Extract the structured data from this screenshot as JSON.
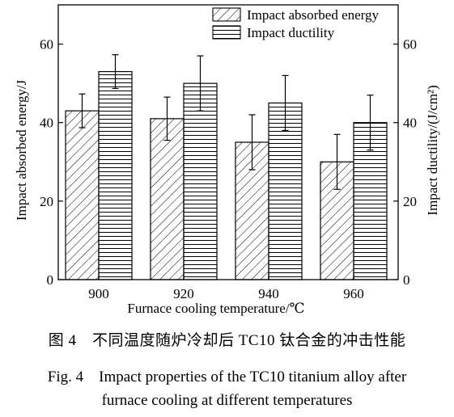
{
  "chart_data": {
    "type": "bar",
    "categories": [
      "900",
      "920",
      "940",
      "960"
    ],
    "series": [
      {
        "name": "Impact absorbed energy",
        "values": [
          43,
          41,
          35,
          30
        ],
        "errors": [
          4.3,
          5.5,
          7,
          7
        ],
        "axis": "left",
        "pattern": "diagonal-hatch"
      },
      {
        "name": "Impact ductility",
        "values": [
          53,
          50,
          45,
          40
        ],
        "errors": [
          4.3,
          7,
          7,
          7
        ],
        "axis": "right",
        "pattern": "horizontal-lines"
      }
    ],
    "xlabel": "Furnace cooling temperature/℃",
    "ylabel_left": "Impact absorbed energy/J",
    "ylabel_right": "Impact ductility/(J/cm²)",
    "ylim_left": [
      0,
      70
    ],
    "ylim_right": [
      0,
      70
    ],
    "yticks": [
      0,
      20,
      40,
      60
    ],
    "grid": false,
    "legend_position": "top-right"
  },
  "caption": {
    "cn": "图 4　不同温度随炉冷却后 TC10 钛合金的冲击性能",
    "en_line1": "Fig. 4　Impact properties of the TC10 titanium alloy after",
    "en_line2": "furnace cooling at different temperatures"
  }
}
